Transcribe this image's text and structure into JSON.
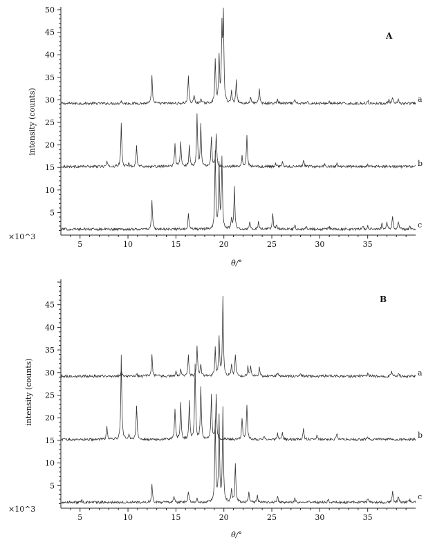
{
  "chart_data": [
    {
      "type": "line",
      "panel": "A",
      "title": "",
      "xlabel": "θ/°",
      "ylabel": "intensity (counts)",
      "scale_label": "×10^3",
      "xlim": [
        3,
        40
      ],
      "ylim": [
        0,
        50
      ],
      "xticks": [
        5,
        10,
        15,
        20,
        25,
        30,
        35
      ],
      "yticks": [
        5,
        10,
        15,
        20,
        25,
        30,
        35,
        40,
        45,
        50
      ],
      "grid": false,
      "series": [
        {
          "name": "a",
          "baseline": 29.2,
          "peaks": [
            [
              9.3,
              0.6
            ],
            [
              12.5,
              6.0
            ],
            [
              16.3,
              6.2
            ],
            [
              16.9,
              1.8
            ],
            [
              17.6,
              1.2
            ],
            [
              19.1,
              9.6
            ],
            [
              19.5,
              10.2
            ],
            [
              19.8,
              16.0
            ],
            [
              19.95,
              18.5
            ],
            [
              20.8,
              2.6
            ],
            [
              21.3,
              5.4
            ],
            [
              22.8,
              1.6
            ],
            [
              23.7,
              3.2
            ],
            [
              25.6,
              1.0
            ],
            [
              27.4,
              0.8
            ],
            [
              28.7,
              0.6
            ],
            [
              31.0,
              0.5
            ],
            [
              35.0,
              0.7
            ],
            [
              37.2,
              0.8
            ],
            [
              37.6,
              1.2
            ],
            [
              38.2,
              0.8
            ]
          ]
        },
        {
          "name": "b",
          "baseline": 15.2,
          "peaks": [
            [
              7.8,
              1.2
            ],
            [
              9.3,
              9.6
            ],
            [
              10.1,
              0.8
            ],
            [
              10.9,
              4.6
            ],
            [
              14.9,
              5.2
            ],
            [
              15.5,
              5.5
            ],
            [
              16.4,
              4.8
            ],
            [
              17.2,
              11.5
            ],
            [
              17.6,
              9.2
            ],
            [
              18.7,
              6.7
            ],
            [
              19.2,
              7.2
            ],
            [
              21.9,
              2.6
            ],
            [
              22.4,
              7.0
            ],
            [
              25.4,
              0.8
            ],
            [
              26.1,
              1.0
            ],
            [
              28.3,
              1.6
            ],
            [
              30.5,
              0.6
            ],
            [
              31.8,
              0.8
            ],
            [
              35.0,
              0.4
            ]
          ]
        },
        {
          "name": "c",
          "baseline": 1.3,
          "peaks": [
            [
              12.5,
              6.4
            ],
            [
              16.3,
              3.3
            ],
            [
              19.1,
              16.8
            ],
            [
              19.5,
              14.2
            ],
            [
              19.8,
              15.5
            ],
            [
              20.8,
              2.2
            ],
            [
              21.1,
              9.6
            ],
            [
              22.7,
              1.6
            ],
            [
              23.6,
              1.5
            ],
            [
              25.1,
              3.4
            ],
            [
              25.5,
              1.0
            ],
            [
              27.4,
              1.0
            ],
            [
              28.6,
              0.6
            ],
            [
              31.0,
              0.6
            ],
            [
              34.5,
              0.6
            ],
            [
              35.0,
              0.9
            ],
            [
              36.5,
              1.3
            ],
            [
              37.0,
              1.8
            ],
            [
              37.6,
              3.0
            ],
            [
              38.2,
              1.6
            ],
            [
              39.4,
              0.6
            ]
          ]
        }
      ]
    },
    {
      "type": "line",
      "panel": "B",
      "title": "",
      "xlabel": "θ/°",
      "ylabel": "intensity (counts)",
      "scale_label": "×10^3",
      "xlim": [
        3,
        40
      ],
      "ylim": [
        0,
        50
      ],
      "xticks": [
        5,
        10,
        15,
        20,
        25,
        30,
        35
      ],
      "yticks": [
        5,
        10,
        15,
        20,
        25,
        30,
        35,
        40,
        45
      ],
      "grid": false,
      "series": [
        {
          "name": "a",
          "baseline": 29.2,
          "peaks": [
            [
              9.3,
              1.2
            ],
            [
              10.9,
              0.6
            ],
            [
              12.5,
              4.6
            ],
            [
              15.0,
              1.0
            ],
            [
              15.5,
              1.4
            ],
            [
              16.3,
              4.6
            ],
            [
              17.2,
              6.9
            ],
            [
              17.6,
              2.6
            ],
            [
              19.1,
              6.1
            ],
            [
              19.5,
              8.3
            ],
            [
              19.9,
              17.3
            ],
            [
              20.8,
              2.4
            ],
            [
              21.2,
              4.9
            ],
            [
              22.5,
              2.0
            ],
            [
              22.8,
              2.4
            ],
            [
              23.7,
              1.8
            ],
            [
              25.6,
              0.8
            ],
            [
              28.0,
              0.5
            ],
            [
              31.0,
              0.5
            ],
            [
              35.0,
              0.6
            ],
            [
              37.5,
              0.9
            ],
            [
              38.2,
              0.6
            ]
          ]
        },
        {
          "name": "b",
          "baseline": 15.2,
          "peaks": [
            [
              7.8,
              3.0
            ],
            [
              9.3,
              18.8
            ],
            [
              10.1,
              1.3
            ],
            [
              10.9,
              7.6
            ],
            [
              14.9,
              6.8
            ],
            [
              15.5,
              8.0
            ],
            [
              16.4,
              8.4
            ],
            [
              17.0,
              16.3
            ],
            [
              17.6,
              11.8
            ],
            [
              18.7,
              9.7
            ],
            [
              19.2,
              9.6
            ],
            [
              21.9,
              4.8
            ],
            [
              22.4,
              7.7
            ],
            [
              24.2,
              0.8
            ],
            [
              25.6,
              1.4
            ],
            [
              26.1,
              1.6
            ],
            [
              28.3,
              2.5
            ],
            [
              29.7,
              0.8
            ],
            [
              31.8,
              1.3
            ],
            [
              35.0,
              0.5
            ]
          ]
        },
        {
          "name": "c",
          "baseline": 1.3,
          "peaks": [
            [
              5.2,
              0.4
            ],
            [
              12.5,
              4.0
            ],
            [
              14.8,
              1.2
            ],
            [
              16.3,
              2.4
            ],
            [
              17.2,
              0.8
            ],
            [
              19.1,
              17.8
            ],
            [
              19.5,
              18.5
            ],
            [
              19.9,
              20.6
            ],
            [
              20.8,
              2.8
            ],
            [
              21.2,
              8.6
            ],
            [
              22.6,
              2.4
            ],
            [
              23.5,
              1.4
            ],
            [
              25.6,
              1.5
            ],
            [
              27.4,
              0.8
            ],
            [
              30.9,
              0.6
            ],
            [
              35.0,
              0.8
            ],
            [
              37.6,
              2.4
            ],
            [
              38.2,
              1.4
            ],
            [
              39.4,
              0.6
            ]
          ]
        }
      ]
    }
  ],
  "panels": [
    {
      "label": "A",
      "ylabel": "intensity (counts)",
      "xlabel": "θ/°",
      "scale_label": "×10^3"
    },
    {
      "label": "B",
      "ylabel": "intensity (counts)",
      "xlabel": "θ/°",
      "scale_label": "×10^3"
    }
  ]
}
